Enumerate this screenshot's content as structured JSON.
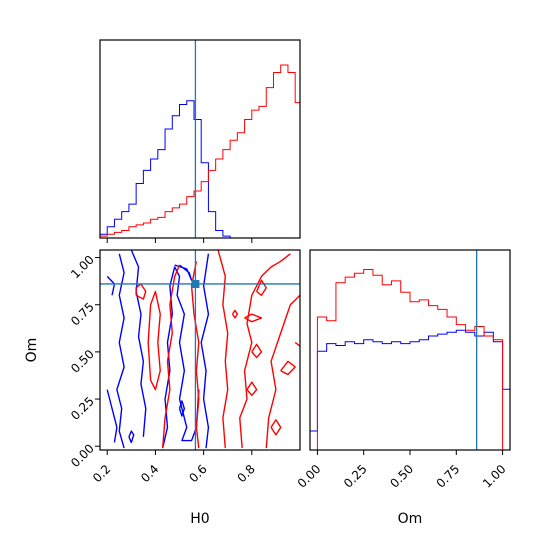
{
  "chart_data": [
    {
      "type": "histogram",
      "panel": "H0-marginal",
      "xlabel": "",
      "ylabel": "",
      "xlim": [
        0.17,
        1.0
      ],
      "xticks": [
        0.2,
        0.4,
        0.6,
        0.8
      ],
      "truth": 0.566,
      "series": [
        {
          "color": "#0000ff",
          "edges": [
            0.17,
            0.2,
            0.23,
            0.26,
            0.29,
            0.32,
            0.35,
            0.38,
            0.41,
            0.44,
            0.47,
            0.5,
            0.53,
            0.56,
            0.59,
            0.62,
            0.65,
            0.68,
            0.71
          ],
          "heights": [
            0.02,
            0.06,
            0.1,
            0.14,
            0.18,
            0.29,
            0.36,
            0.42,
            0.47,
            0.58,
            0.65,
            0.71,
            0.73,
            0.63,
            0.4,
            0.14,
            0.04,
            0.01
          ]
        },
        {
          "color": "#ff0000",
          "edges": [
            0.17,
            0.2,
            0.23,
            0.26,
            0.29,
            0.32,
            0.35,
            0.38,
            0.41,
            0.44,
            0.47,
            0.5,
            0.53,
            0.56,
            0.59,
            0.62,
            0.65,
            0.68,
            0.71,
            0.74,
            0.77,
            0.8,
            0.83,
            0.86,
            0.89,
            0.92,
            0.95,
            0.98,
            1.0
          ],
          "heights": [
            0.01,
            0.02,
            0.03,
            0.04,
            0.06,
            0.07,
            0.08,
            0.1,
            0.11,
            0.14,
            0.16,
            0.18,
            0.22,
            0.25,
            0.3,
            0.36,
            0.42,
            0.47,
            0.52,
            0.56,
            0.63,
            0.68,
            0.7,
            0.8,
            0.88,
            0.92,
            0.88,
            0.72
          ]
        }
      ]
    },
    {
      "type": "contour",
      "panel": "H0-Om-joint",
      "xlabel": "H0",
      "ylabel": "Om",
      "xlim": [
        0.17,
        1.0
      ],
      "ylim": [
        -0.02,
        1.04
      ],
      "xticks": [
        "0.2",
        "0.4",
        "0.6",
        "0.8"
      ],
      "yticks": [
        "0.00",
        "0.25",
        "0.50",
        "0.75",
        "1.00"
      ],
      "truth": {
        "x": 0.566,
        "y": 0.86
      },
      "series": [
        {
          "color": "#0000ff",
          "contours": [
            [
              [
                0.27,
                -0.01
              ],
              [
                0.25,
                0.08
              ],
              [
                0.26,
                0.2
              ],
              [
                0.24,
                0.3
              ],
              [
                0.27,
                0.42
              ],
              [
                0.25,
                0.55
              ],
              [
                0.27,
                0.68
              ],
              [
                0.25,
                0.8
              ],
              [
                0.27,
                0.92
              ],
              [
                0.25,
                1.02
              ]
            ],
            [
              [
                0.2,
                0.3
              ],
              [
                0.22,
                0.2
              ],
              [
                0.24,
                0.1
              ],
              [
                0.23,
                0.02
              ]
            ],
            [
              [
                0.2,
                0.9
              ],
              [
                0.23,
                0.86
              ],
              [
                0.22,
                0.8
              ]
            ],
            [
              [
                0.3,
                1.04
              ],
              [
                0.33,
                0.95
              ],
              [
                0.32,
                0.82
              ],
              [
                0.34,
                0.7
              ],
              [
                0.33,
                0.58
              ],
              [
                0.35,
                0.45
              ],
              [
                0.34,
                0.33
              ],
              [
                0.36,
                0.2
              ],
              [
                0.35,
                0.05
              ]
            ],
            [
              [
                0.43,
                -0.01
              ],
              [
                0.45,
                0.1
              ],
              [
                0.44,
                0.25
              ],
              [
                0.46,
                0.4
              ],
              [
                0.45,
                0.55
              ],
              [
                0.47,
                0.7
              ],
              [
                0.46,
                0.85
              ],
              [
                0.48,
                0.95
              ],
              [
                0.5,
                0.9
              ],
              [
                0.49,
                0.8
              ],
              [
                0.52,
                0.7
              ],
              [
                0.5,
                0.55
              ],
              [
                0.52,
                0.4
              ],
              [
                0.5,
                0.25
              ],
              [
                0.53,
                0.1
              ],
              [
                0.51,
                0.03
              ],
              [
                0.55,
                0.03
              ],
              [
                0.57,
                0.1
              ],
              [
                0.58,
                0.3
              ]
            ],
            [
              [
                0.62,
                1.02
              ],
              [
                0.6,
                0.85
              ],
              [
                0.62,
                0.7
              ],
              [
                0.59,
                0.55
              ],
              [
                0.61,
                0.4
              ],
              [
                0.6,
                0.25
              ],
              [
                0.62,
                0.1
              ],
              [
                0.61,
                -0.01
              ]
            ],
            [
              [
                0.48,
                0.96
              ],
              [
                0.53,
                0.94
              ],
              [
                0.55,
                0.88
              ],
              [
                0.54,
                0.92
              ],
              [
                0.5,
                0.96
              ]
            ],
            [
              [
                0.29,
                0.05
              ],
              [
                0.3,
                0.02
              ],
              [
                0.31,
                0.06
              ],
              [
                0.3,
                0.08
              ],
              [
                0.29,
                0.05
              ]
            ],
            [
              [
                0.5,
                0.2
              ],
              [
                0.51,
                0.16
              ],
              [
                0.52,
                0.2
              ],
              [
                0.51,
                0.24
              ],
              [
                0.5,
                0.2
              ]
            ]
          ]
        },
        {
          "color": "#ff0000",
          "contours": [
            [
              [
                0.32,
                0.8
              ],
              [
                0.35,
                0.78
              ],
              [
                0.36,
                0.82
              ],
              [
                0.34,
                0.86
              ],
              [
                0.32,
                0.84
              ],
              [
                0.32,
                0.8
              ]
            ],
            [
              [
                0.38,
                0.35
              ],
              [
                0.37,
                0.55
              ],
              [
                0.38,
                0.75
              ],
              [
                0.4,
                0.82
              ],
              [
                0.42,
                0.7
              ],
              [
                0.41,
                0.55
              ],
              [
                0.42,
                0.4
              ],
              [
                0.4,
                0.3
              ],
              [
                0.38,
                0.35
              ]
            ],
            [
              [
                0.43,
                -0.01
              ],
              [
                0.44,
                0.15
              ],
              [
                0.46,
                0.3
              ],
              [
                0.45,
                0.45
              ],
              [
                0.47,
                0.6
              ],
              [
                0.46,
                0.75
              ],
              [
                0.48,
                0.9
              ],
              [
                0.5,
                0.96
              ]
            ],
            [
              [
                0.57,
                0.98
              ],
              [
                0.55,
                0.85
              ],
              [
                0.56,
                0.7
              ],
              [
                0.58,
                0.55
              ],
              [
                0.57,
                0.4
              ],
              [
                0.58,
                0.25
              ],
              [
                0.57,
                0.1
              ],
              [
                0.58,
                -0.01
              ]
            ],
            [
              [
                0.66,
                1.04
              ],
              [
                0.69,
                0.9
              ],
              [
                0.68,
                0.75
              ],
              [
                0.7,
                0.6
              ],
              [
                0.69,
                0.45
              ],
              [
                0.7,
                0.3
              ],
              [
                0.68,
                0.15
              ],
              [
                0.69,
                -0.01
              ]
            ],
            [
              [
                0.76,
                -0.01
              ],
              [
                0.75,
                0.15
              ],
              [
                0.78,
                0.25
              ],
              [
                0.77,
                0.4
              ],
              [
                0.8,
                0.55
              ],
              [
                0.78,
                0.65
              ],
              [
                0.8,
                0.8
              ],
              [
                0.84,
                0.9
              ],
              [
                0.88,
                0.95
              ],
              [
                0.92,
                0.98
              ],
              [
                0.96,
                1.02
              ]
            ],
            [
              [
                0.86,
                -0.01
              ],
              [
                0.87,
                0.15
              ],
              [
                0.9,
                0.3
              ],
              [
                0.88,
                0.45
              ],
              [
                0.92,
                0.6
              ],
              [
                0.96,
                0.75
              ],
              [
                1.0,
                0.8
              ]
            ],
            [
              [
                0.82,
                0.82
              ],
              [
                0.84,
                0.88
              ],
              [
                0.86,
                0.84
              ],
              [
                0.84,
                0.8
              ],
              [
                0.82,
                0.82
              ]
            ],
            [
              [
                0.77,
                0.68
              ],
              [
                0.8,
                0.7
              ],
              [
                0.84,
                0.68
              ],
              [
                0.8,
                0.66
              ],
              [
                0.77,
                0.68
              ]
            ],
            [
              [
                0.72,
                0.7
              ],
              [
                0.73,
                0.68
              ],
              [
                0.74,
                0.7
              ],
              [
                0.73,
                0.72
              ],
              [
                0.72,
                0.7
              ]
            ],
            [
              [
                0.8,
                0.5
              ],
              [
                0.82,
                0.54
              ],
              [
                0.84,
                0.5
              ],
              [
                0.82,
                0.47
              ],
              [
                0.8,
                0.5
              ]
            ],
            [
              [
                0.78,
                0.3
              ],
              [
                0.8,
                0.34
              ],
              [
                0.82,
                0.3
              ],
              [
                0.8,
                0.27
              ],
              [
                0.78,
                0.3
              ]
            ],
            [
              [
                0.88,
                0.1
              ],
              [
                0.9,
                0.14
              ],
              [
                0.92,
                0.1
              ],
              [
                0.9,
                0.06
              ],
              [
                0.88,
                0.1
              ]
            ],
            [
              [
                0.92,
                0.4
              ],
              [
                0.95,
                0.45
              ],
              [
                0.98,
                0.42
              ],
              [
                0.95,
                0.38
              ],
              [
                0.92,
                0.4
              ]
            ],
            [
              [
                0.98,
                0.55
              ],
              [
                1.0,
                0.53
              ]
            ]
          ]
        }
      ]
    },
    {
      "type": "histogram",
      "panel": "Om-marginal",
      "xlabel": "Om",
      "ylabel": "",
      "xlim": [
        -0.04,
        1.04
      ],
      "xticks": [
        "0.00",
        "0.25",
        "0.50",
        "0.75",
        "1.00"
      ],
      "truth": 0.86,
      "series": [
        {
          "color": "#0000ff",
          "edges": [
            -0.04,
            0.0,
            0.05,
            0.1,
            0.15,
            0.2,
            0.25,
            0.3,
            0.35,
            0.4,
            0.45,
            0.5,
            0.55,
            0.6,
            0.65,
            0.7,
            0.75,
            0.8,
            0.85,
            0.9,
            0.95,
            1.0,
            1.04
          ],
          "heights": [
            0.1,
            0.52,
            0.56,
            0.55,
            0.57,
            0.56,
            0.58,
            0.57,
            0.56,
            0.57,
            0.56,
            0.57,
            0.58,
            0.6,
            0.61,
            0.62,
            0.63,
            0.62,
            0.6,
            0.62,
            0.57,
            0.32
          ]
        },
        {
          "color": "#ff0000",
          "edges": [
            0.0,
            0.05,
            0.1,
            0.15,
            0.2,
            0.25,
            0.3,
            0.35,
            0.4,
            0.45,
            0.5,
            0.55,
            0.6,
            0.65,
            0.7,
            0.75,
            0.8,
            0.85,
            0.9,
            0.95,
            1.0
          ],
          "heights": [
            0.7,
            0.68,
            0.88,
            0.91,
            0.93,
            0.95,
            0.92,
            0.87,
            0.89,
            0.83,
            0.78,
            0.79,
            0.76,
            0.74,
            0.7,
            0.66,
            0.63,
            0.65,
            0.6,
            0.58
          ]
        }
      ]
    }
  ]
}
